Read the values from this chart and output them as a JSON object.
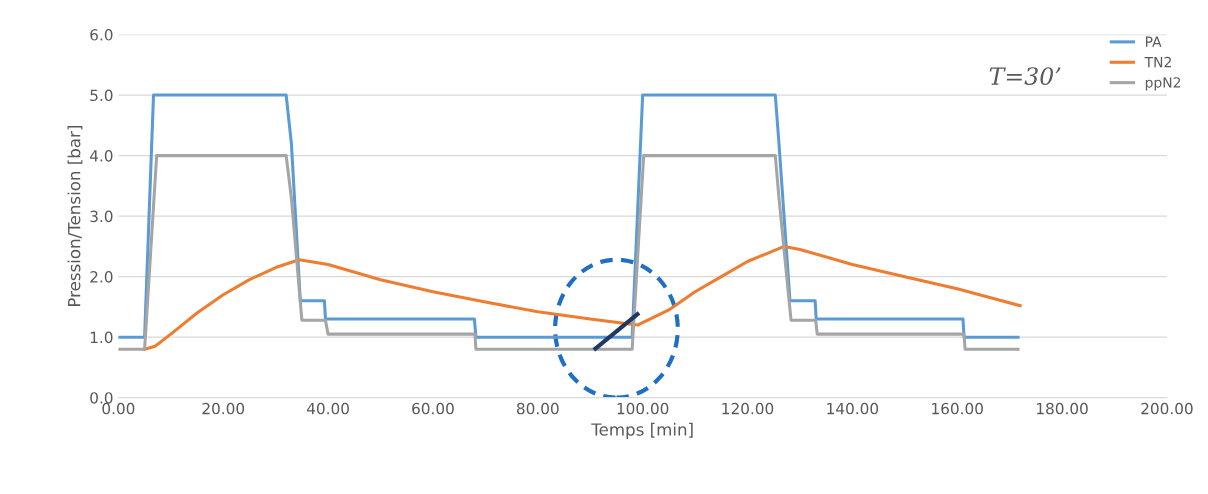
{
  "chart_data": {
    "type": "line",
    "xlabel": "Temps [min]",
    "ylabel": "Pression/Tension [bar]",
    "xlim": [
      0,
      200
    ],
    "ylim": [
      0,
      6
    ],
    "xticks": [
      {
        "value": 0,
        "label": "0.00"
      },
      {
        "value": 20,
        "label": "20.00"
      },
      {
        "value": 40,
        "label": "40.00"
      },
      {
        "value": 60,
        "label": "60.00"
      },
      {
        "value": 80,
        "label": "80.00"
      },
      {
        "value": 100,
        "label": "100.00"
      },
      {
        "value": 120,
        "label": "120.00"
      },
      {
        "value": 140,
        "label": "140.00"
      },
      {
        "value": 160,
        "label": "160.00"
      },
      {
        "value": 180,
        "label": "180.00"
      },
      {
        "value": 200,
        "label": "200.00"
      }
    ],
    "yticks": [
      {
        "value": 0,
        "label": "0.0"
      },
      {
        "value": 1,
        "label": "1.0"
      },
      {
        "value": 2,
        "label": "2.0"
      },
      {
        "value": 3,
        "label": "3.0"
      },
      {
        "value": 4,
        "label": "4.0"
      },
      {
        "value": 5,
        "label": "5.0"
      },
      {
        "value": 6,
        "label": "6.0"
      }
    ],
    "grid": "y",
    "legend": "top right",
    "marker": "none",
    "line_style": "solid",
    "annotations": [
      "T=30’"
    ],
    "series": [
      {
        "name": "PA",
        "color": "#5b9bd5",
        "x": [
          0,
          5,
          6.7,
          32,
          33,
          34.7,
          35,
          39.3,
          39.5,
          67.9,
          68.2,
          98,
          100,
          125.3,
          126,
          128.1,
          128.3,
          132.9,
          133.1,
          161.1,
          161.3,
          171.6
        ],
        "values": [
          1.0,
          1.0,
          5.0,
          5.0,
          4.2,
          1.6,
          1.6,
          1.6,
          1.3,
          1.3,
          1.0,
          1.0,
          5.0,
          5.0,
          4.2,
          1.6,
          1.6,
          1.6,
          1.3,
          1.3,
          1.0,
          1.0
        ]
      },
      {
        "name": "TN2",
        "color": "#ed7d31",
        "x": [
          5,
          7,
          10,
          15,
          20,
          25,
          30,
          34.5,
          40,
          50,
          60,
          70,
          80,
          90,
          99,
          105,
          110,
          115,
          120,
          127,
          130,
          140,
          150,
          160,
          172
        ],
        "values": [
          0.8,
          0.85,
          1.05,
          1.4,
          1.7,
          1.95,
          2.15,
          2.28,
          2.2,
          1.95,
          1.75,
          1.58,
          1.42,
          1.3,
          1.2,
          1.45,
          1.75,
          2.0,
          2.25,
          2.5,
          2.45,
          2.2,
          2.0,
          1.8,
          1.52
        ]
      },
      {
        "name": "ppN2",
        "color": "#a5a5a5",
        "x": [
          0,
          5,
          7.3,
          32,
          33,
          35,
          39.5,
          40,
          68,
          68.2,
          98,
          100.2,
          125.3,
          126,
          128.3,
          133,
          133.3,
          161.3,
          161.5,
          171.6
        ],
        "values": [
          0.8,
          0.8,
          4.0,
          4.0,
          3.3,
          1.28,
          1.28,
          1.05,
          1.05,
          0.8,
          0.8,
          4.0,
          4.0,
          3.3,
          1.28,
          1.28,
          1.05,
          1.05,
          0.8,
          0.8
        ]
      }
    ]
  }
}
